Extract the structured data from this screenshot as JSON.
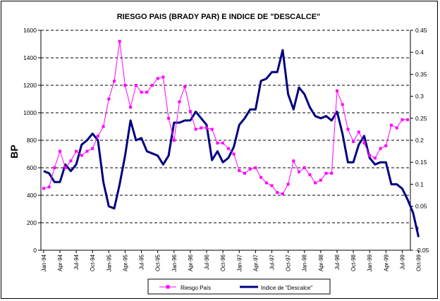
{
  "chart_data": {
    "type": "line",
    "title": "RIESGO PAIS (BRADY PAR) E INDICE DE \"DESCALCE\"",
    "ylabel": "BP",
    "ylim": [
      0,
      1600
    ],
    "y2lim": [
      -0.05,
      0.45
    ],
    "yticks": [
      "0",
      "200",
      "400",
      "600",
      "800",
      "1000",
      "1200",
      "1400",
      "1600"
    ],
    "y2ticks": [
      "-0.05",
      "0",
      "0.05",
      "0.1",
      "0.15",
      "0.2",
      "0.25",
      "0.3",
      "0.35",
      "0.4",
      "0.45"
    ],
    "x_tick_labels": [
      "Jan-94",
      "Apr-94",
      "Jul-94",
      "Oct-94",
      "Jan-95",
      "Apr-95",
      "Jul-95",
      "Oct-95",
      "Jan-96",
      "Apr-96",
      "Jul-96",
      "Oct-96",
      "Jan-97",
      "Apr-97",
      "Jul-97",
      "Oct-97",
      "Jan-98",
      "Apr-98",
      "Jul-98",
      "Oct-98",
      "Jan-99",
      "Apr-99",
      "Jul-99",
      "Oct-99"
    ],
    "grid": "horizontal dashed",
    "legend_position": "bottom-center",
    "series": [
      {
        "name": "Riesgo País",
        "axis": "left",
        "color": "#ff00ff",
        "marker": "square",
        "values": [
          450,
          460,
          600,
          720,
          600,
          650,
          720,
          690,
          720,
          740,
          830,
          900,
          1100,
          1230,
          1520,
          1200,
          1040,
          1200,
          1150,
          1150,
          1200,
          1250,
          1260,
          960,
          800,
          1080,
          1190,
          1010,
          880,
          890,
          890,
          880,
          780,
          780,
          740,
          700,
          580,
          560,
          590,
          600,
          530,
          490,
          470,
          420,
          410,
          480,
          650,
          570,
          600,
          550,
          490,
          510,
          560,
          560,
          1160,
          1060,
          880,
          790,
          860,
          780,
          690,
          670,
          740,
          760,
          910,
          890,
          950,
          950
        ]
      },
      {
        "name": "Indice de \"Descalce\"",
        "axis": "right",
        "color": "#000080",
        "values": [
          0.13,
          0.125,
          0.105,
          0.105,
          0.145,
          0.13,
          0.145,
          0.19,
          0.2,
          0.215,
          0.2,
          0.105,
          0.05,
          0.045,
          0.1,
          0.165,
          0.245,
          0.2,
          0.205,
          0.175,
          0.17,
          0.165,
          0.145,
          0.165,
          0.24,
          0.24,
          0.245,
          0.245,
          0.265,
          0.25,
          0.235,
          0.155,
          0.175,
          0.15,
          0.16,
          0.185,
          0.235,
          0.25,
          0.27,
          0.27,
          0.335,
          0.34,
          0.355,
          0.355,
          0.405,
          0.305,
          0.27,
          0.32,
          0.305,
          0.275,
          0.255,
          0.25,
          0.255,
          0.245,
          0.265,
          0.215,
          0.15,
          0.15,
          0.19,
          0.21,
          0.16,
          0.145,
          0.15,
          0.15,
          0.1,
          0.1,
          0.09,
          0.065,
          0.035,
          -0.02
        ]
      }
    ]
  }
}
